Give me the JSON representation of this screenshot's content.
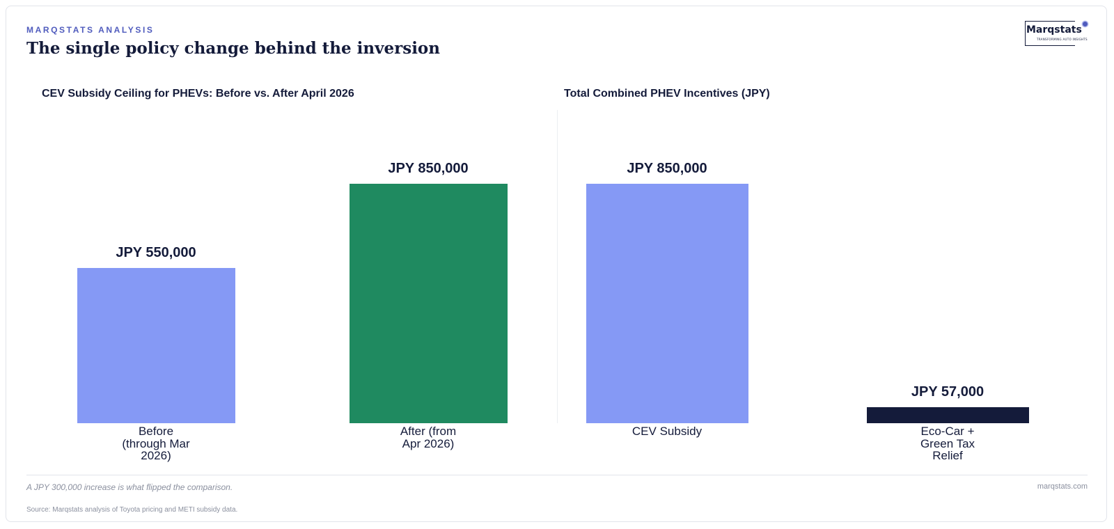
{
  "header": {
    "eyebrow": "MARQSTATS ANALYSIS",
    "title": "The single policy change behind the inversion",
    "logo_word": "Marqstats",
    "logo_tagline": "TRANSFORMING AUTO INSIGHTS"
  },
  "chart_data": [
    {
      "type": "bar",
      "title": "CEV Subsidy Ceiling for PHEVs: Before vs. After April 2026",
      "categories": [
        "Before\n(through Mar\n2026)",
        "After (from\nApr 2026)"
      ],
      "values": [
        550000,
        850000
      ],
      "value_labels": [
        "JPY 550,000",
        "JPY 850,000"
      ],
      "colors": [
        "#8599f5",
        "#1f8a60"
      ],
      "ylim": [
        0,
        850000
      ],
      "grid": false,
      "xlabel": "",
      "ylabel": ""
    },
    {
      "type": "bar",
      "title": "Total Combined PHEV Incentives (JPY)",
      "categories": [
        "CEV Subsidy",
        "Eco-Car +\nGreen Tax\nRelief"
      ],
      "values": [
        850000,
        57000
      ],
      "value_labels": [
        "JPY 850,000",
        "JPY 57,000"
      ],
      "colors": [
        "#8599f5",
        "#141b3a"
      ],
      "ylim": [
        0,
        850000
      ],
      "grid": false,
      "xlabel": "",
      "ylabel": ""
    }
  ],
  "footer": {
    "note": "A JPY 300,000 increase is what flipped the comparison.",
    "site": "marqstats.com",
    "source": "Source: Marqstats analysis of Toyota pricing and METI subsidy data."
  }
}
